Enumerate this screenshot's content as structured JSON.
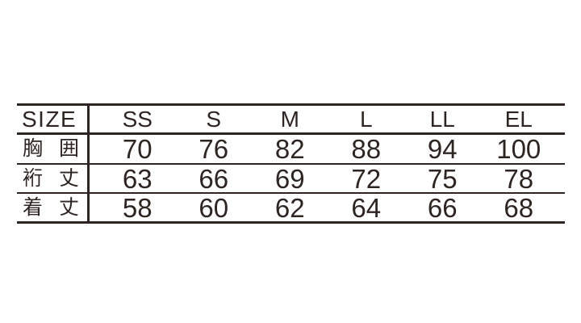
{
  "chart_data": {
    "type": "table",
    "header": {
      "label": "SIZE",
      "columns": [
        "SS",
        "S",
        "M",
        "L",
        "LL",
        "EL"
      ]
    },
    "rows": [
      {
        "label": "胸 囲",
        "values": [
          "70",
          "76",
          "82",
          "88",
          "94",
          "100"
        ]
      },
      {
        "label": "裄 丈",
        "values": [
          "63",
          "66",
          "69",
          "72",
          "75",
          "78"
        ]
      },
      {
        "label": "着 丈",
        "values": [
          "58",
          "60",
          "62",
          "64",
          "66",
          "68"
        ]
      }
    ]
  },
  "colors": {
    "ink": "#2e2522",
    "background": "#ffffff"
  }
}
